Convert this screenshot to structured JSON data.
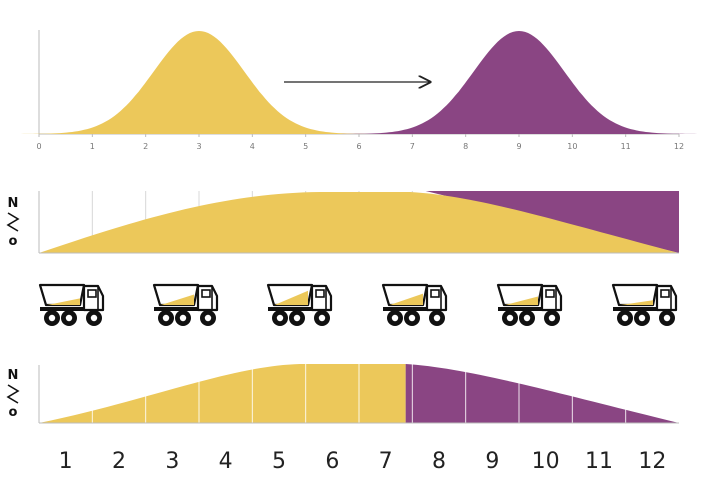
{
  "colors": {
    "initial": "#ECC85A",
    "final": "#8A4583",
    "axis": "#BBBBBB",
    "grid": "#D8D8D8",
    "arrow": "#222222",
    "truck": "#111111"
  },
  "top_chart": {
    "x_ticks": [
      "0",
      "1",
      "2",
      "3",
      "4",
      "5",
      "6",
      "7",
      "8",
      "9",
      "10",
      "11",
      "12"
    ],
    "xlim": [
      0,
      12
    ],
    "initial_mean": 3,
    "final_mean": 9,
    "std_dev": 0.85
  },
  "middle_chart": {
    "y_label_top": "N",
    "y_label_bottom": "o",
    "columns": 12
  },
  "trucks": {
    "icon": "dump-truck-icon",
    "load_fractions": [
      0.35,
      0.55,
      0.75,
      0.6,
      0.45,
      0.25
    ]
  },
  "bottom_chart": {
    "y_label_top": "N",
    "y_label_bottom": "o",
    "x_ticks": [
      "1",
      "2",
      "3",
      "4",
      "5",
      "6",
      "7",
      "8",
      "9",
      "10",
      "11",
      "12"
    ],
    "split_at": 7.5
  }
}
